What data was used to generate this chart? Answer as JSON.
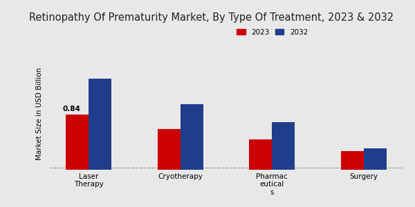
{
  "title": "Retinopathy Of Prematurity Market, By Type Of Treatment, 2023 & 2032",
  "ylabel": "Market Size in USD Billion",
  "categories": [
    "Laser\nTherapy",
    "Cryotherapy",
    "Pharmac\neutical\ns",
    "Surgery"
  ],
  "values_2023": [
    0.84,
    0.62,
    0.46,
    0.28
  ],
  "values_2032": [
    1.38,
    1.0,
    0.72,
    0.33
  ],
  "color_2023": "#cc0000",
  "color_2032": "#1f3d8a",
  "background_color": "#e8e8e8",
  "annotation_value": "0.84",
  "legend_2023": "2023",
  "legend_2032": "2032",
  "bar_width": 0.25,
  "ylim": [
    0,
    1.7
  ],
  "title_fontsize": 10.5,
  "label_fontsize": 7.5,
  "tick_fontsize": 7.5,
  "dashed_line_y": 0.03
}
